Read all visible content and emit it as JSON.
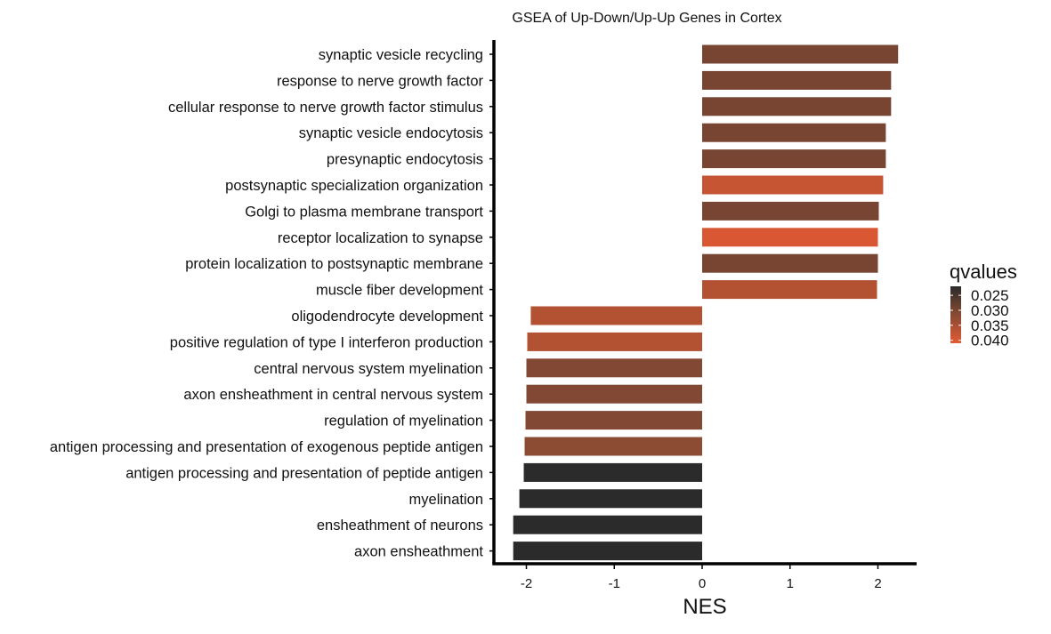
{
  "chart_data": {
    "type": "bar",
    "orientation": "horizontal",
    "title": "GSEA of Up-Down/Up-Up Genes in Cortex",
    "xlabel": "NES",
    "ylabel": "",
    "xlim": [
      -2.4,
      2.4
    ],
    "xticks": [
      -2,
      -1,
      0,
      1,
      2
    ],
    "xtick_labels": [
      "-2",
      "-1",
      "0",
      "1",
      "2"
    ],
    "grid": false,
    "categories": [
      "synaptic vesicle recycling",
      "response to nerve growth factor",
      "cellular response to nerve growth factor stimulus",
      "synaptic vesicle endocytosis",
      "presynaptic endocytosis",
      "postsynaptic specialization organization",
      "Golgi to plasma membrane transport",
      "receptor localization to synapse",
      "protein localization to postsynaptic membrane",
      "muscle fiber development",
      "oligodendrocyte development",
      "positive regulation of type I interferon production",
      "central nervous system myelination",
      "axon ensheathment in central nervous system",
      "regulation of myelination",
      "antigen processing and presentation of exogenous peptide antigen",
      "antigen processing and presentation of peptide antigen",
      "myelination",
      "ensheathment of neurons",
      "axon ensheathment"
    ],
    "values": [
      2.23,
      2.15,
      2.15,
      2.09,
      2.09,
      2.06,
      2.01,
      2.0,
      2.0,
      1.99,
      -1.95,
      -1.99,
      -2.0,
      -2.0,
      -2.01,
      -2.02,
      -2.03,
      -2.08,
      -2.15,
      -2.15
    ],
    "qvalues": [
      0.03,
      0.03,
      0.03,
      0.03,
      0.03,
      0.038,
      0.03,
      0.04,
      0.03,
      0.036,
      0.036,
      0.036,
      0.031,
      0.031,
      0.031,
      0.032,
      0.022,
      0.022,
      0.022,
      0.022
    ],
    "legend": {
      "title": "qvalues",
      "placement": "right",
      "labels": [
        "0.025",
        "0.030",
        "0.035",
        "0.040"
      ],
      "values": [
        0.025,
        0.03,
        0.035,
        0.04
      ],
      "range": [
        0.022,
        0.041
      ],
      "colors": [
        "#2b2b2b",
        "#874a33",
        "#e35a33"
      ]
    }
  }
}
